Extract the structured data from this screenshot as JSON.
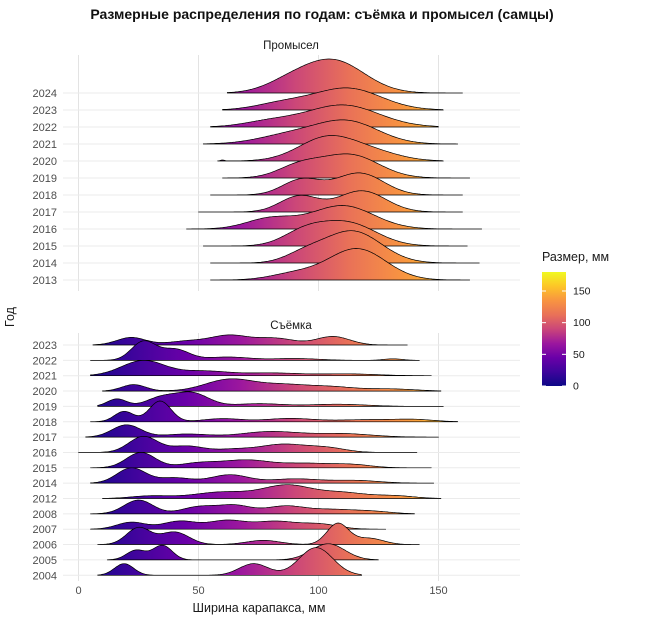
{
  "chart_data": {
    "type": "ridgeline",
    "title": "Размерные распределения по годам: съёмка и промысел (самцы)",
    "xlabel": "Ширина карапакса, мм",
    "ylabel": "Год",
    "x_ticks": [
      0,
      50,
      100,
      150
    ],
    "xlim": [
      -6,
      185
    ],
    "grid": "major-only, light gray on white panel",
    "legend_position": "right",
    "color_scale": {
      "name": "plasma",
      "title": "Размер, мм",
      "domain": [
        0,
        180
      ],
      "ticks": [
        0,
        50,
        100,
        150
      ],
      "stops": [
        {
          "at": 0,
          "color": "#0d0887"
        },
        {
          "at": 22.5,
          "color": "#3e049c"
        },
        {
          "at": 45,
          "color": "#6a00a8"
        },
        {
          "at": 67.5,
          "color": "#9c179e"
        },
        {
          "at": 90,
          "color": "#cb4679"
        },
        {
          "at": 112.5,
          "color": "#e97158"
        },
        {
          "at": 135,
          "color": "#f89441"
        },
        {
          "at": 157.5,
          "color": "#fdc527"
        },
        {
          "at": 180,
          "color": "#f0f921"
        }
      ]
    },
    "panels": [
      {
        "label": "Промысел",
        "years": [
          {
            "year": 2024,
            "range": [
              62,
              160
            ],
            "peak_h": 2.0,
            "modes": [
              [
                106,
                13,
                1
              ],
              [
                87,
                10,
                0.25
              ]
            ]
          },
          {
            "year": 2023,
            "range": [
              60,
              152
            ],
            "peak_h": 1.3,
            "modes": [
              [
                112,
                14,
                1
              ],
              [
                85,
                11,
                0.3
              ]
            ]
          },
          {
            "year": 2022,
            "range": [
              55,
              150
            ],
            "peak_h": 1.3,
            "modes": [
              [
                110,
                15,
                1
              ],
              [
                80,
                11,
                0.25
              ]
            ]
          },
          {
            "year": 2021,
            "range": [
              52,
              158
            ],
            "peak_h": 1.42,
            "modes": [
              [
                112,
                13,
                1
              ],
              [
                88,
                13,
                0.4
              ]
            ]
          },
          {
            "year": 2020,
            "range": [
              58,
              152
            ],
            "peak_h": 1.5,
            "modes": [
              [
                104,
                12,
                1
              ],
              [
                124,
                11,
                0.3
              ],
              [
                60,
                0.8,
                0.04
              ]
            ]
          },
          {
            "year": 2019,
            "range": [
              60,
              163
            ],
            "peak_h": 1.42,
            "modes": [
              [
                113,
                12,
                1
              ],
              [
                92,
                9,
                0.5
              ]
            ]
          },
          {
            "year": 2018,
            "range": [
              55,
              160
            ],
            "peak_h": 1.3,
            "modes": [
              [
                117,
                10,
                1
              ],
              [
                93,
                8,
                0.7
              ]
            ]
          },
          {
            "year": 2017,
            "range": [
              50,
              160
            ],
            "peak_h": 1.25,
            "modes": [
              [
                118,
                10,
                1
              ],
              [
                92,
                8,
                0.75
              ]
            ]
          },
          {
            "year": 2016,
            "range": [
              45,
              168
            ],
            "peak_h": 1.38,
            "modes": [
              [
                110,
                13,
                1
              ],
              [
                80,
                10,
                0.45
              ]
            ]
          },
          {
            "year": 2015,
            "range": [
              52,
              162
            ],
            "peak_h": 1.5,
            "modes": [
              [
                112,
                12,
                1
              ],
              [
                94,
                9,
                0.55
              ]
            ]
          },
          {
            "year": 2014,
            "range": [
              55,
              167
            ],
            "peak_h": 1.9,
            "modes": [
              [
                114,
                12,
                1
              ],
              [
                94,
                8,
                0.25
              ]
            ]
          },
          {
            "year": 2013,
            "range": [
              55,
              163
            ],
            "peak_h": 1.85,
            "modes": [
              [
                116,
                12,
                1
              ],
              [
                90,
                10,
                0.2
              ]
            ]
          }
        ]
      },
      {
        "label": "Съёмка",
        "years": [
          {
            "year": 2023,
            "range": [
              6,
              137
            ],
            "peak_h": 0.66,
            "modes": [
              [
                22,
                6,
                0.8
              ],
              [
                45,
                8,
                0.4
              ],
              [
                63,
                8,
                1
              ],
              [
                82,
                8,
                0.7
              ],
              [
                106,
                7,
                0.9
              ]
            ]
          },
          {
            "year": 2022,
            "range": [
              5,
              142
            ],
            "peak_h": 1.28,
            "modes": [
              [
                27,
                5,
                1
              ],
              [
                40,
                6,
                0.6
              ],
              [
                62,
                9,
                0.18
              ],
              [
                90,
                10,
                0.1
              ],
              [
                131,
                4,
                0.08
              ]
            ]
          },
          {
            "year": 2021,
            "range": [
              5,
              147
            ],
            "peak_h": 1.0,
            "modes": [
              [
                27,
                9,
                1
              ],
              [
                52,
                10,
                0.3
              ],
              [
                80,
                12,
                0.18
              ],
              [
                112,
                12,
                0.12
              ]
            ]
          },
          {
            "year": 2020,
            "range": [
              10,
              151
            ],
            "peak_h": 0.8,
            "modes": [
              [
                23,
                5,
                0.55
              ],
              [
                63,
                10,
                1
              ],
              [
                85,
                10,
                0.5
              ],
              [
                105,
                10,
                0.35
              ],
              [
                130,
                10,
                0.18
              ]
            ]
          },
          {
            "year": 2019,
            "range": [
              8,
              152
            ],
            "peak_h": 0.95,
            "modes": [
              [
                16,
                4,
                0.55
              ],
              [
                34,
                6,
                0.6
              ],
              [
                47,
                7,
                1
              ],
              [
                75,
                10,
                0.2
              ],
              [
                108,
                12,
                0.16
              ]
            ]
          },
          {
            "year": 2018,
            "range": [
              5,
              158
            ],
            "peak_h": 1.35,
            "modes": [
              [
                19,
                4,
                0.5
              ],
              [
                34,
                4.5,
                1
              ],
              [
                60,
                8,
                0.15
              ],
              [
                88,
                10,
                0.16
              ],
              [
                120,
                12,
                0.1
              ],
              [
                140,
                8,
                0.1
              ]
            ]
          },
          {
            "year": 2017,
            "range": [
              3,
              150
            ],
            "peak_h": 0.8,
            "modes": [
              [
                20,
                6,
                1
              ],
              [
                45,
                9,
                0.25
              ],
              [
                80,
                12,
                0.45
              ],
              [
                110,
                12,
                0.28
              ]
            ]
          },
          {
            "year": 2016,
            "range": [
              0,
              141
            ],
            "peak_h": 1.05,
            "modes": [
              [
                27,
                6,
                1
              ],
              [
                45,
                7,
                0.4
              ],
              [
                65,
                8,
                0.2
              ],
              [
                85,
                9,
                0.5
              ],
              [
                103,
                8,
                0.3
              ]
            ]
          },
          {
            "year": 2015,
            "range": [
              5,
              147
            ],
            "peak_h": 1.0,
            "modes": [
              [
                26,
                6,
                1
              ],
              [
                50,
                8,
                0.3
              ],
              [
                70,
                10,
                0.5
              ],
              [
                95,
                10,
                0.28
              ],
              [
                114,
                8,
                0.2
              ]
            ]
          },
          {
            "year": 2014,
            "range": [
              5,
              148
            ],
            "peak_h": 1.0,
            "modes": [
              [
                22,
                6,
                1
              ],
              [
                40,
                7,
                0.35
              ],
              [
                63,
                8,
                0.55
              ],
              [
                90,
                10,
                0.28
              ],
              [
                115,
                10,
                0.18
              ]
            ]
          },
          {
            "year": 2012,
            "range": [
              10,
              151
            ],
            "peak_h": 0.9,
            "modes": [
              [
                30,
                8,
                0.2
              ],
              [
                60,
                12,
                0.5
              ],
              [
                87,
                10,
                1
              ],
              [
                110,
                10,
                0.45
              ],
              [
                132,
                8,
                0.2
              ]
            ]
          },
          {
            "year": 2008,
            "range": [
              5,
              140
            ],
            "peak_h": 0.9,
            "modes": [
              [
                25,
                6,
                1
              ],
              [
                50,
                7,
                0.5
              ],
              [
                65,
                7,
                0.6
              ],
              [
                86,
                8,
                0.55
              ],
              [
                105,
                9,
                0.3
              ],
              [
                122,
                8,
                0.18
              ]
            ]
          },
          {
            "year": 2007,
            "range": [
              5,
              128
            ],
            "peak_h": 0.6,
            "modes": [
              [
                22,
                6,
                0.8
              ],
              [
                42,
                7,
                0.9
              ],
              [
                62,
                8,
                1
              ],
              [
                82,
                8,
                0.85
              ],
              [
                100,
                8,
                0.6
              ]
            ]
          },
          {
            "year": 2006,
            "range": [
              8,
              142
            ],
            "peak_h": 1.4,
            "modes": [
              [
                25,
                5,
                0.8
              ],
              [
                40,
                6,
                0.6
              ],
              [
                77,
                7,
                0.2
              ],
              [
                108,
                4.5,
                1
              ],
              [
                121,
                6,
                0.3
              ]
            ]
          },
          {
            "year": 2005,
            "range": [
              12,
              125
            ],
            "peak_h": 1.05,
            "modes": [
              [
                24,
                4,
                0.6
              ],
              [
                35,
                4,
                0.9
              ],
              [
                104,
                7,
                1
              ]
            ]
          },
          {
            "year": 2004,
            "range": [
              8,
              118
            ],
            "peak_h": 1.8,
            "modes": [
              [
                19,
                4,
                0.42
              ],
              [
                73,
                6,
                0.42
              ],
              [
                99,
                7,
                1
              ]
            ]
          }
        ]
      }
    ]
  }
}
